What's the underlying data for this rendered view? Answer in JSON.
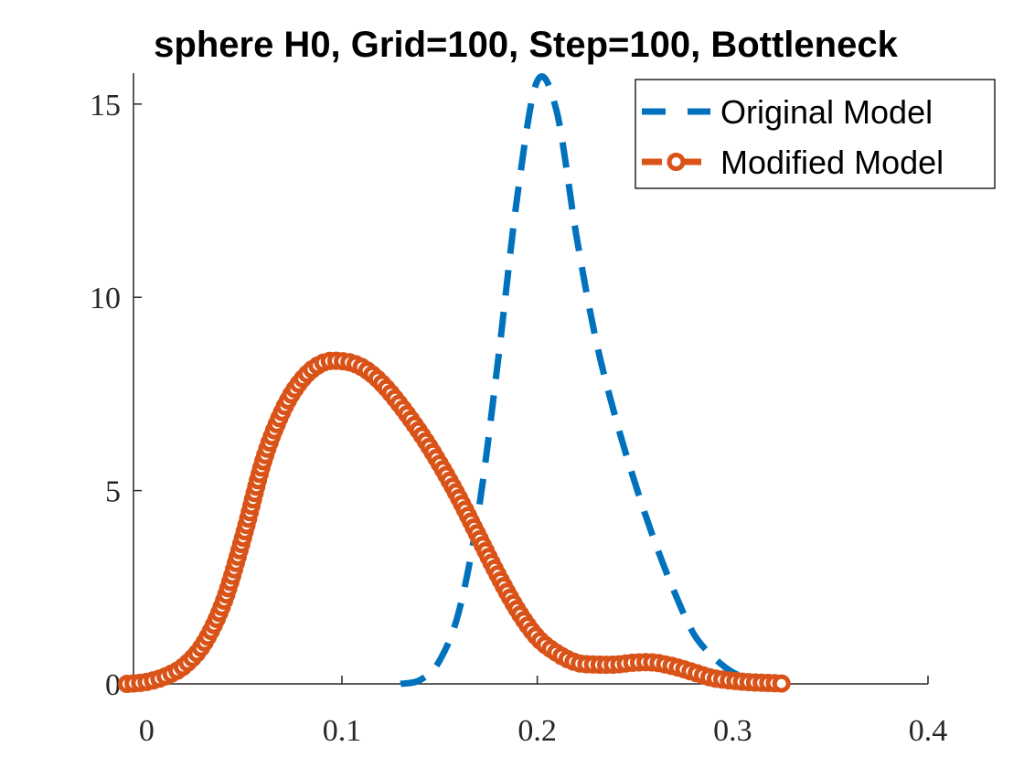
{
  "chart_data": {
    "type": "line",
    "title": "sphere H0, Grid=100, Step=100, Bottleneck",
    "xlabel": "",
    "ylabel": "",
    "xlim": [
      -0.0067,
      0.4
    ],
    "ylim": [
      0,
      15.8
    ],
    "x_ticks": [
      "0",
      "0.1",
      "0.2",
      "0.3",
      "0.4"
    ],
    "y_ticks": [
      "0",
      "5",
      "10",
      "15"
    ],
    "grid": false,
    "legend_position": "top-right",
    "series": [
      {
        "name": "Original Model",
        "style": "dashed",
        "color": "#0072BD",
        "x": [
          0.13,
          0.14,
          0.15,
          0.16,
          0.17,
          0.18,
          0.19,
          0.2,
          0.21,
          0.22,
          0.23,
          0.24,
          0.25,
          0.26,
          0.27,
          0.28,
          0.29,
          0.3,
          0.31
        ],
        "y": [
          0.0,
          0.1,
          0.6,
          1.9,
          4.5,
          8.4,
          12.7,
          15.6,
          14.8,
          11.6,
          8.9,
          6.9,
          5.2,
          3.7,
          2.4,
          1.3,
          0.7,
          0.3,
          0.1
        ]
      },
      {
        "name": "Modified Model",
        "style": "solid-circle-markers",
        "color": "#D95319",
        "x": [
          -0.01,
          0.0,
          0.01,
          0.02,
          0.03,
          0.04,
          0.05,
          0.06,
          0.07,
          0.08,
          0.09,
          0.1,
          0.11,
          0.12,
          0.13,
          0.14,
          0.15,
          0.16,
          0.17,
          0.18,
          0.19,
          0.2,
          0.21,
          0.22,
          0.23,
          0.24,
          0.25,
          0.26,
          0.27,
          0.28,
          0.29,
          0.3,
          0.31,
          0.32,
          0.325
        ],
        "y": [
          0.0,
          0.05,
          0.2,
          0.5,
          1.1,
          2.2,
          3.9,
          5.8,
          7.1,
          7.9,
          8.3,
          8.35,
          8.2,
          7.8,
          7.2,
          6.5,
          5.7,
          4.8,
          3.8,
          2.8,
          1.9,
          1.2,
          0.8,
          0.55,
          0.5,
          0.5,
          0.55,
          0.55,
          0.45,
          0.3,
          0.15,
          0.08,
          0.04,
          0.02,
          0.01
        ]
      }
    ]
  }
}
